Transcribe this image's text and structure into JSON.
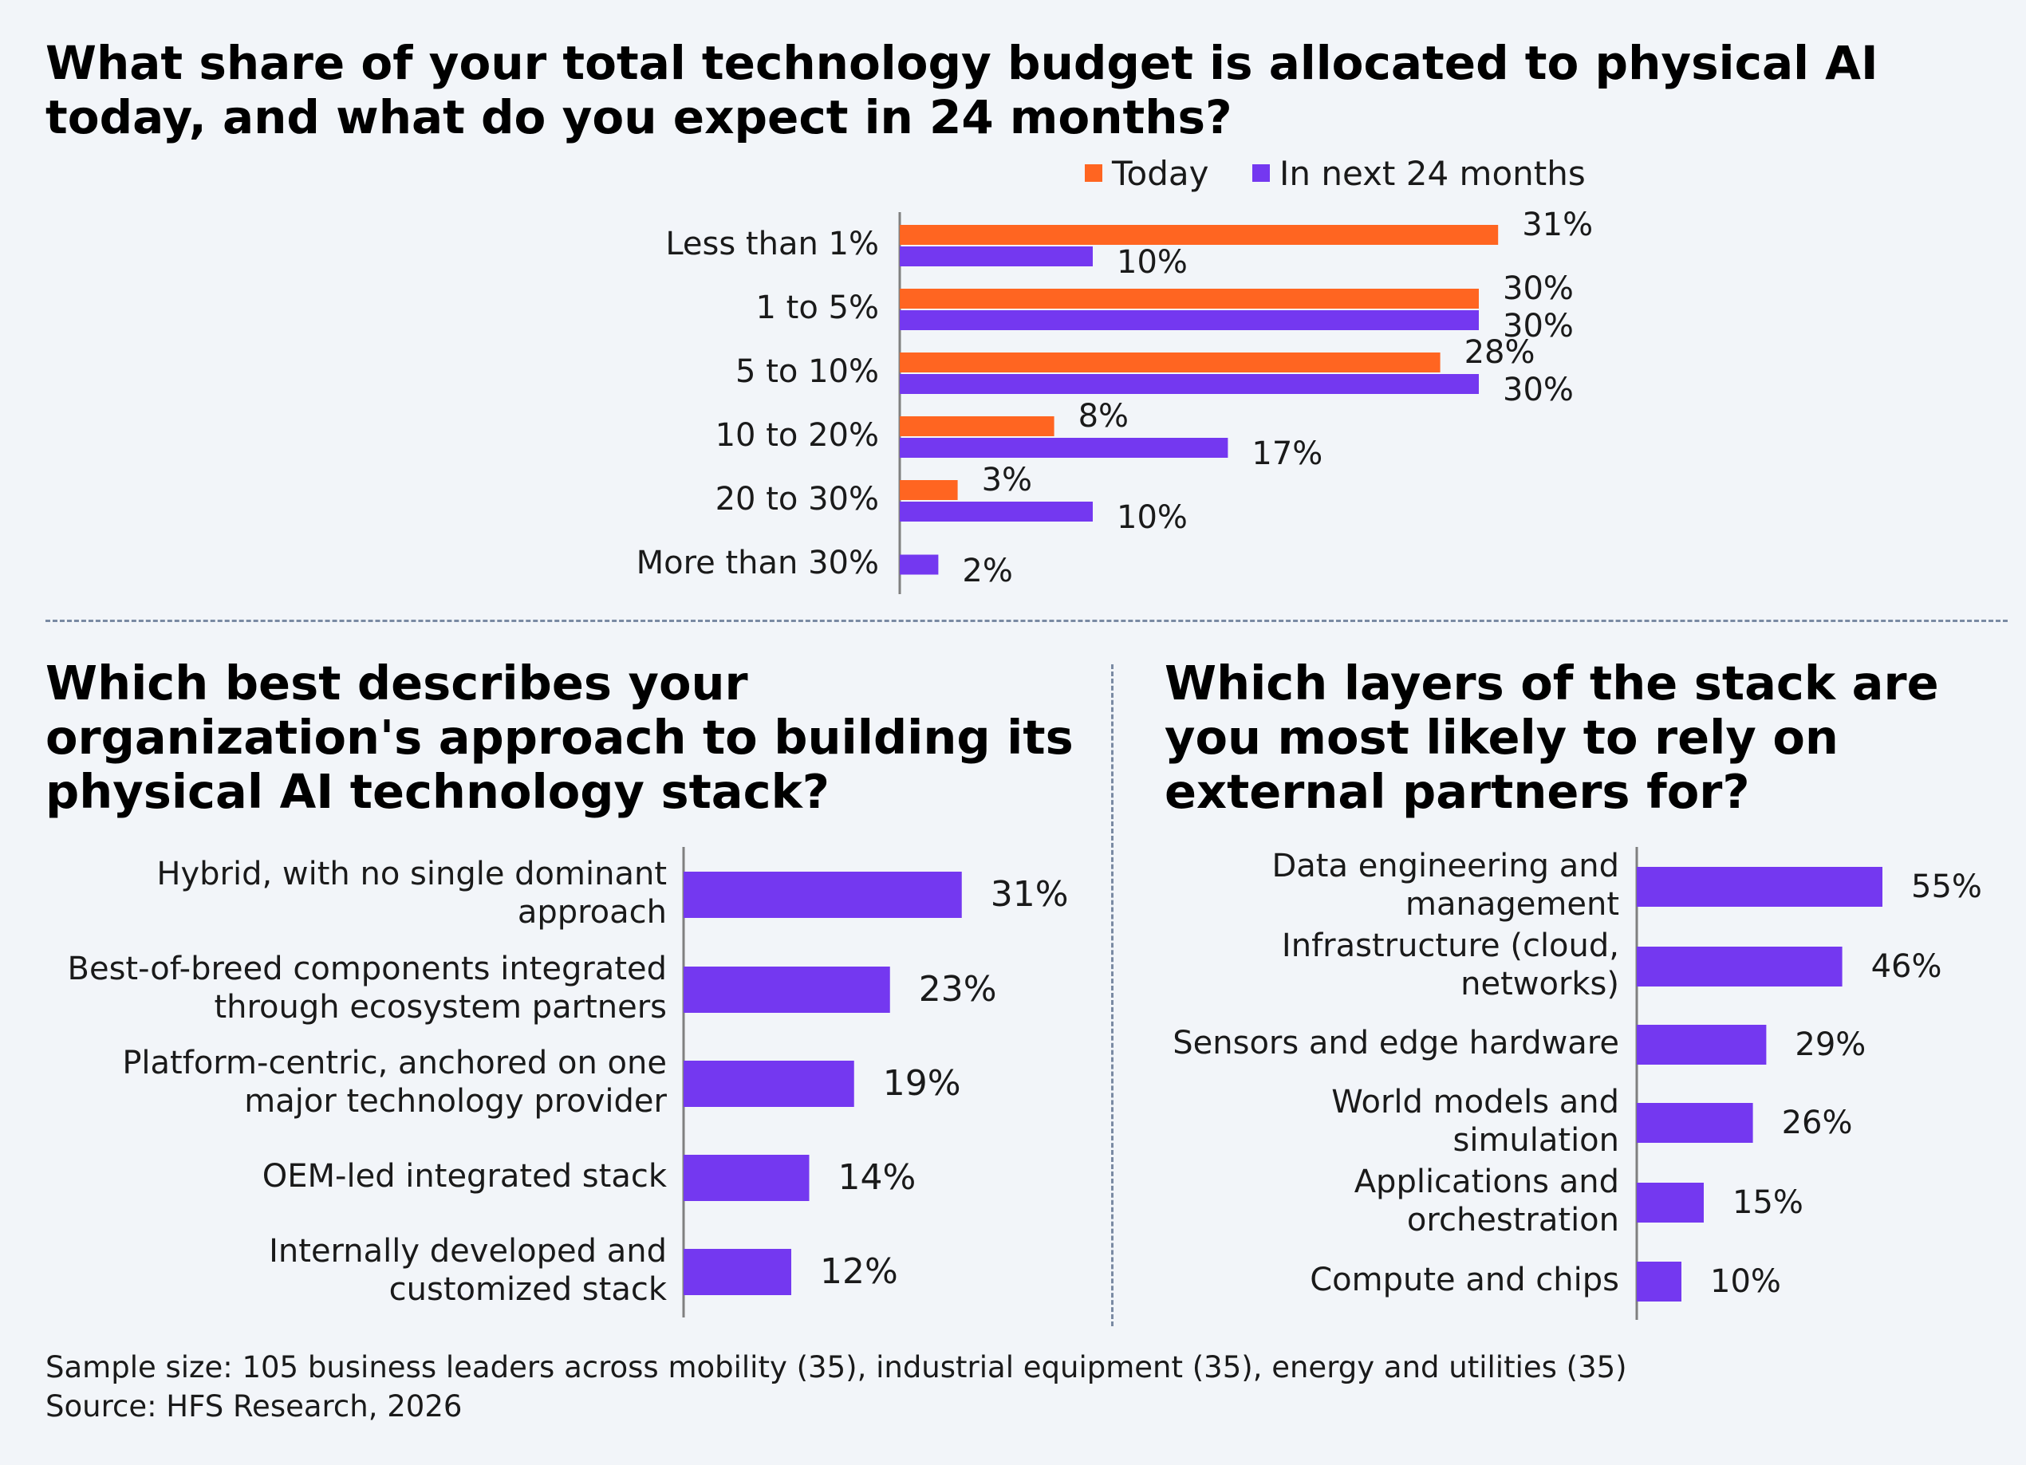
{
  "colors": {
    "today": "#ff6521",
    "next": "#7438f0",
    "axis": "#808080",
    "text": "#1a1a1a"
  },
  "titles": {
    "chart1": "What share of your total technology budget is allocated to physical AI today, and what do you expect in 24 months?",
    "chart2": "Which best describes your organization's approach to building its physical AI technology stack?",
    "chart3": "Which layers of the stack are you most likely to rely on external partners for?"
  },
  "legend": {
    "today": "Today",
    "next": "In next 24 months"
  },
  "footer": {
    "note": "Sample size: 105 business leaders across mobility (35), industrial equipment (35), energy and utilities (35)",
    "source": "Source: HFS Research, 2026"
  },
  "chart_data": [
    {
      "type": "bar",
      "orientation": "horizontal",
      "title": "What share of your total technology budget is allocated to physical AI today, and what do you expect in 24 months?",
      "categories": [
        "Less than 1%",
        "1 to 5%",
        "5 to 10%",
        "10 to 20%",
        "20 to 30%",
        "More than 30%"
      ],
      "series": [
        {
          "name": "Today",
          "values": [
            31,
            30,
            28,
            8,
            3,
            null
          ],
          "labels": [
            "31%",
            "30%",
            "28%",
            "8%",
            "3%",
            ""
          ]
        },
        {
          "name": "In next 24 months",
          "values": [
            10,
            30,
            30,
            17,
            10,
            2
          ],
          "labels": [
            "10%",
            "30%",
            "30%",
            "17%",
            "10%",
            "2%"
          ]
        }
      ],
      "legend_position": "top",
      "grid": false
    },
    {
      "type": "bar",
      "orientation": "horizontal",
      "title": "Which best describes your organization's approach to building its physical AI technology stack?",
      "categories": [
        [
          "Hybrid, with no single dominant",
          "approach"
        ],
        [
          "Best-of-breed components integrated",
          "through ecosystem partners"
        ],
        [
          "Platform-centric, anchored on one",
          "major technology provider"
        ],
        [
          "OEM-led integrated stack"
        ],
        [
          "Internally developed and",
          "customized stack"
        ]
      ],
      "values": [
        31,
        23,
        19,
        14,
        12
      ],
      "labels": [
        "31%",
        "23%",
        "19%",
        "14%",
        "12%"
      ],
      "grid": false
    },
    {
      "type": "bar",
      "orientation": "horizontal",
      "title": "Which layers of the stack are you most likely to rely on external partners for?",
      "categories": [
        [
          "Data engineering and",
          "management"
        ],
        [
          "Infrastructure (cloud,",
          "networks)"
        ],
        [
          "Sensors and edge hardware"
        ],
        [
          "World models and",
          "simulation"
        ],
        [
          "Applications and",
          "orchestration"
        ],
        [
          "Compute and chips"
        ]
      ],
      "values": [
        55,
        46,
        29,
        26,
        15,
        10
      ],
      "labels": [
        "55%",
        "46%",
        "29%",
        "26%",
        "15%",
        "10%"
      ],
      "grid": false
    }
  ]
}
